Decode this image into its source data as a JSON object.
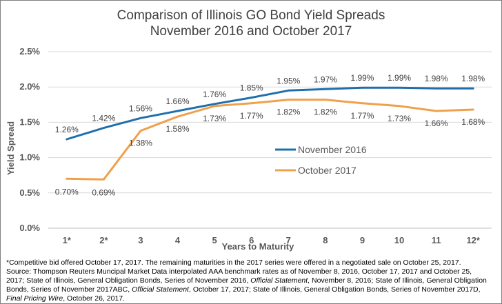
{
  "title_line1": "Comparison of Illinois GO Bond Yield Spreads",
  "title_line2": "November 2016 and October 2017",
  "chart_data": {
    "type": "line",
    "xlabel": "Years to Maturity",
    "ylabel": "Yield Spread",
    "categories": [
      "1*",
      "2*",
      "3",
      "4",
      "5",
      "6",
      "7",
      "8",
      "9",
      "10",
      "11",
      "12*"
    ],
    "ylim": [
      0,
      2.5
    ],
    "yticks": [
      "0.0%",
      "0.5%",
      "1.0%",
      "1.5%",
      "2.0%",
      "2.5%"
    ],
    "grid": true,
    "legend_position": "center-right",
    "series": [
      {
        "name": "November 2016",
        "color": "#1f6fad",
        "values": [
          1.26,
          1.42,
          1.56,
          1.66,
          1.76,
          1.85,
          1.95,
          1.97,
          1.99,
          1.99,
          1.98,
          1.98
        ],
        "labels": [
          "1.26%",
          "1.42%",
          "1.56%",
          "1.66%",
          "1.76%",
          "1.85%",
          "1.95%",
          "1.97%",
          "1.99%",
          "1.99%",
          "1.98%",
          "1.98%"
        ]
      },
      {
        "name": "October 2017",
        "color": "#f0a04b",
        "values": [
          0.7,
          0.69,
          1.38,
          1.58,
          1.73,
          1.77,
          1.82,
          1.82,
          1.77,
          1.73,
          1.66,
          1.68
        ],
        "labels": [
          "0.70%",
          "0.69%",
          "1.38%",
          "1.58%",
          "1.73%",
          "1.77%",
          "1.82%",
          "1.82%",
          "1.77%",
          "1.73%",
          "1.66%",
          "1.68%"
        ]
      }
    ]
  },
  "footnote": {
    "line1": "*Competitive bid offered October 17, 2017. The remaining maturities in the 2017 series were offered in a negotiated sale on October 25, 2017.",
    "line2": "Source: Thompson Reuters Muncipal Market Data interpolated AAA benchmark rates as of November 8, 2016, October 17, 2017 and October 25,",
    "line3a": "2017; State of Illinois, General Obligation Bonds, Series of November 2016, ",
    "line3b": "Official Statement",
    "line3c": ", November 8, 2016; State of Illinois, General Obligation",
    "line4a": "Bonds, Series of November 2017ABC, ",
    "line4b": "Official Statement",
    "line4c": ", October 17, 2017; State of Illinois, General Obligation Bonds, Series of November 2017D,",
    "line5a": "Final Pricing Wire",
    "line5b": ", October 26, 2017."
  }
}
